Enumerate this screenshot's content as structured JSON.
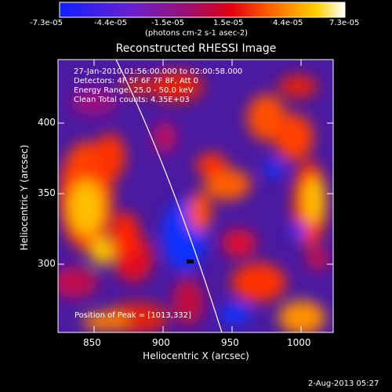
{
  "colorbar": {
    "ticks": [
      "-7.3e-05",
      "-4.4e-05",
      "-1.5e-05",
      "1.5e-05",
      "4.4e-05",
      "7.3e-05"
    ],
    "unit_label": "(photons cm-2 s-1 asec-2)"
  },
  "title": "Reconstructed RHESSI Image",
  "info_lines": [
    "27-Jan-2010 01:56:00.000 to 02:00:58.000",
    "Detectors: 4F 5F 6F 7F 8F, Att 0",
    "Energy Range: 25.0 - 50.0 keV",
    "Clean     Total counts: 4.35E+03"
  ],
  "peak_text": "Position of Peak = [1013,332]",
  "axes": {
    "xlabel": "Heliocentric X (arcsec)",
    "ylabel": "Heliocentric Y (arcsec)",
    "xticks": [
      "850",
      "900",
      "950",
      "1000"
    ],
    "yticks": [
      "400",
      "350",
      "300"
    ]
  },
  "footer_date": "2-Aug-2013 05:27"
}
